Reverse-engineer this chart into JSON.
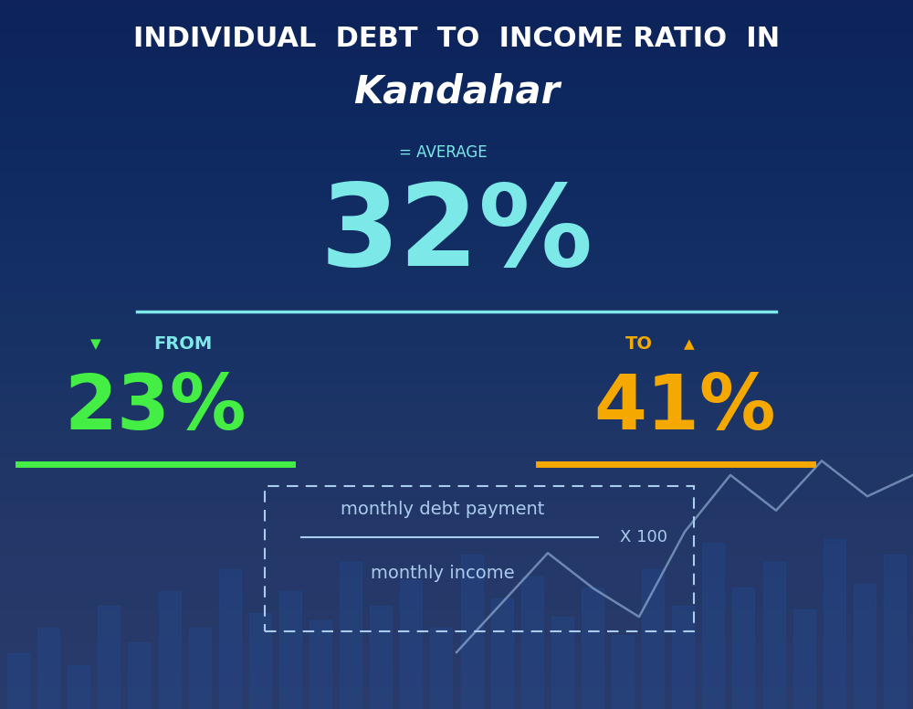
{
  "title_line1": "INDIVIDUAL  DEBT  TO  INCOME RATIO  IN",
  "title_line2": "Kandahar",
  "avg_label": "= AVERAGE",
  "avg_value": "32%",
  "from_label": "FROM",
  "from_value": "23%",
  "to_label": "TO",
  "to_value": "41%",
  "formula_numerator": "monthly debt payment",
  "formula_denominator": "monthly income",
  "formula_multiplier": "X 100",
  "bg_color": "#0e2257",
  "title_color": "#ffffff",
  "avg_value_color": "#7de8e8",
  "from_value_color": "#44ee44",
  "to_value_color": "#f5a800",
  "from_label_color": "#7de8e8",
  "to_label_color": "#f5a800",
  "formula_text_color": "#aaccee",
  "divider_color": "#7de8e8",
  "from_underline_color": "#44ee44",
  "to_underline_color": "#f5a800",
  "dashed_box_color": "#aaccee"
}
